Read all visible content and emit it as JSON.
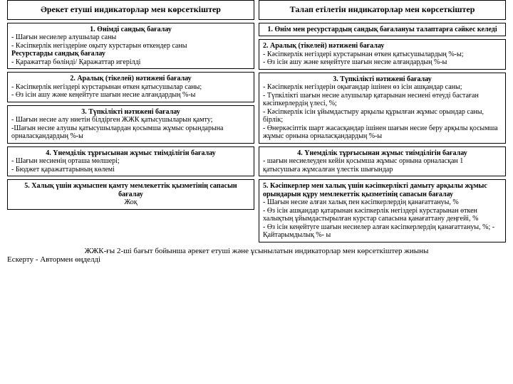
{
  "left": {
    "header": "Әрекет етуші индикаторлар мен көрсеткіштер",
    "box1": {
      "t1": "1. Өнімді сандық бағалау",
      "l1": "- Шағын несиелер алушылар саны",
      "l2": "- Кәсіпкерлік негіздеріне оқыту курстарын өткендер саны",
      "t2": "Ресурстарды сандық бағалау",
      "l3": "- Қаражаттар бөлінді/ Қаражаттар игерілді"
    },
    "box2": {
      "t": "2. Аралық (тікелей) нәтижені бағалау",
      "l1": "- Кәсіпкерлік негіздері курстарынан өткен қатысушылар саны;",
      "l2": "- Өз ісін ашу және кеңейтуге шағын несие алғандардың %-ы"
    },
    "box3": {
      "t": "3. Түпкілікті нәтижені бағалау",
      "l1": "- Шағын несие алу ниетін білдірген ЖЖК қатысушыларын қамту;",
      "l2": "-Шағын несие алушы қатысушылардан қосымша жұмыс орындарына орналасқандардың %-ы"
    },
    "box4": {
      "t": "4. Үнемділік тұрғысынан жұмыс тиімділігін бағалау",
      "l1": "- Шағын несиенің орташа мөлшері;",
      "l2": "- Бюджет қаражаттарының көлемі"
    },
    "box5": {
      "t": "5. Халық үшін жұмыспен қамту мемлекеттік қызметінің сапасын бағалау",
      "l1": "Жоқ"
    }
  },
  "right": {
    "header": "Талап етілетін индикаторлар мен көрсеткіштер",
    "box1": {
      "t": "1. Өнім мен ресурстардың сандық бағалануы талаптарға сәйкес келеді"
    },
    "box2": {
      "t": "2. Аралық (тікелей) нәтижені бағалау",
      "l1": "- Кәсіпкерлік негіздері курстарынан өткен қатысушылардың %-ы;",
      "l2": "- Өз ісін ашу және кеңейтуге шағын несие алғандардың %-ы"
    },
    "box3": {
      "t": "3. Түпкілікті нәтижені бағалау",
      "l1": "- Кәсіпкерлік негіздерін оқығандар ішінен өз ісін ашқандар саны;",
      "l2": "- Түпкілікті шағын несие алушылар қатарынан несиені өтеуді бастаған кәсіпкерлердің үлесі, %;",
      "l3": "- Кәсіпкерлік ісін ұйымдастыру арқылы құрылған жұмыс орындар саны, бірлік;",
      "l4": "- Өнеркәсіптік шарт жасасқандар ішінен шағын несие беру арқылы қосымша жұмыс орнына орналасқандардың %-ы"
    },
    "box4": {
      "t": "4. Үнемділік тұрғысынан жұмыс тиімділігін бағалау",
      "l1": "- шағын несиелеуден кейін қосымша жұмыс орнына орналасқан 1 қатысушыға жұмсалған үлестік шығындар"
    },
    "box5": {
      "t": "5. Кәсіпкерлер мен халық үшін кәсіпкерлікті дамыту арқылы жұмыс орындарын құру мемлекеттік қызметінің сапасын бағалау",
      "l1": "- Шағын несие алған халық пен кәсіпкерлердің қанағаттануы, %",
      "l2": "- Өз ісін ашқандар қатарынан кәсіпкерлік негіздері курстарынан өткен халықтың ұйымдастырылған курстар сапасына қанағаттану деңгейі, %",
      "l3": "- Өз ісін кеңейтуге шағын несиелер алған кәсіпкерлердің қанағаттануы, %; - Қайтарымдылық %- ы"
    }
  },
  "footer": {
    "main": "ЖЖК-ғы 2-ші бағыт бойынша әрекет етуші және ұсынылатын индикаторлар мен көрсеткіштер жиыны",
    "note": "Ескерту - Автормен өңделді"
  }
}
